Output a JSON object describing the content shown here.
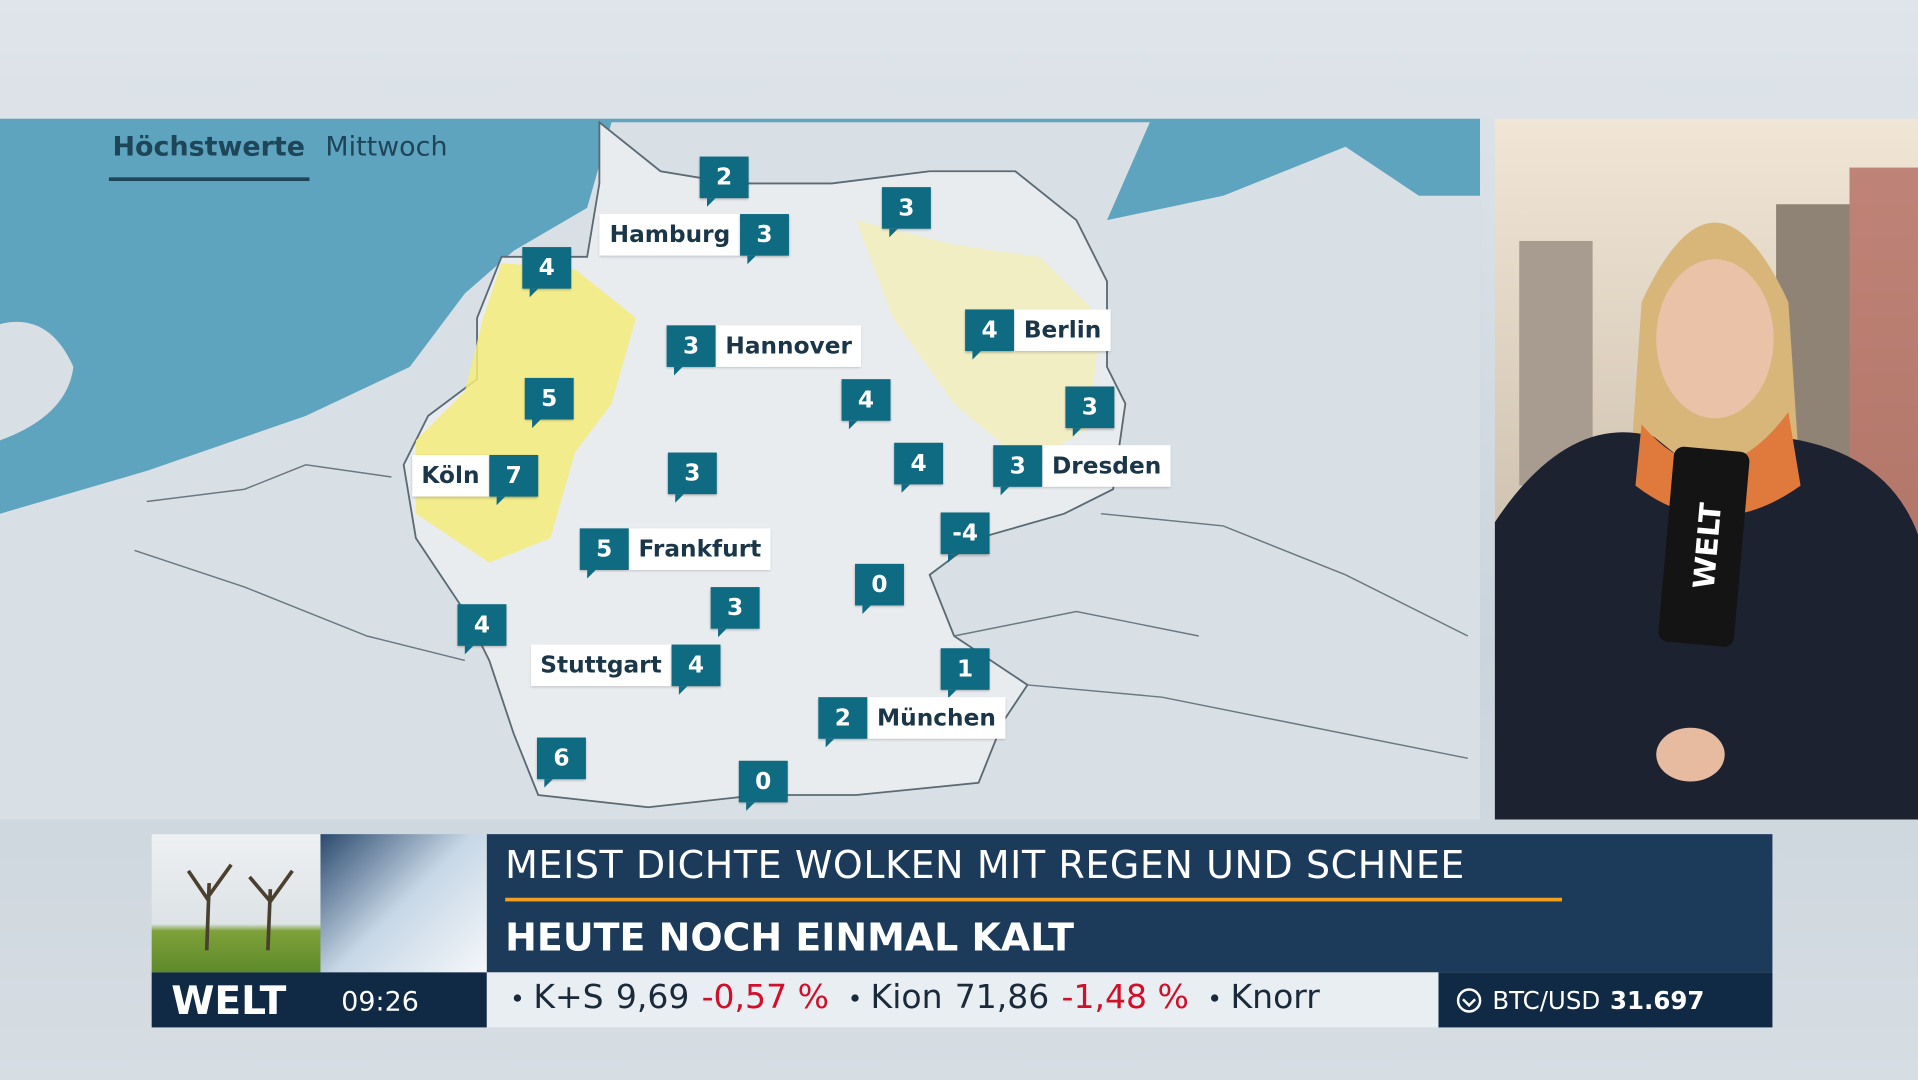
{
  "map": {
    "tab": {
      "active": "Höchstwerte",
      "inactive": "Mittwoch"
    },
    "markers": [
      {
        "value": 2
      },
      {
        "label": "Hamburg",
        "value": 3
      },
      {
        "value": 3
      },
      {
        "value": 4
      },
      {
        "label": "Hannover",
        "value": 3
      },
      {
        "label": "Berlin",
        "value": 4
      },
      {
        "value": 5
      },
      {
        "value": 4
      },
      {
        "value": 3
      },
      {
        "label": "Köln",
        "value": 7
      },
      {
        "value": 3
      },
      {
        "value": 4
      },
      {
        "label": "Dresden",
        "value": 3
      },
      {
        "value": -4
      },
      {
        "label": "Frankfurt",
        "value": 5
      },
      {
        "value": 0
      },
      {
        "value": 3
      },
      {
        "value": 4
      },
      {
        "label": "Stuttgart",
        "value": 4
      },
      {
        "value": 1
      },
      {
        "label": "München",
        "value": 2
      },
      {
        "value": 6
      },
      {
        "value": 0
      }
    ]
  },
  "video": {
    "mic_label": "WELT"
  },
  "lower_third": {
    "headline": "MEIST DICHTE WOLKEN MIT REGEN UND SCHNEE",
    "subline": "HEUTE NOCH EINMAL KALT",
    "logo": "WELT",
    "time": "09:26",
    "ticker": [
      {
        "name": "K+S",
        "price": "9,69",
        "change": "-0,57 %"
      },
      {
        "name": "Kion",
        "price": "71,86",
        "change": "-1,48 %"
      },
      {
        "name": "Knorr"
      }
    ],
    "crypto": {
      "pair": "BTC/USD",
      "price": "31.697"
    }
  }
}
